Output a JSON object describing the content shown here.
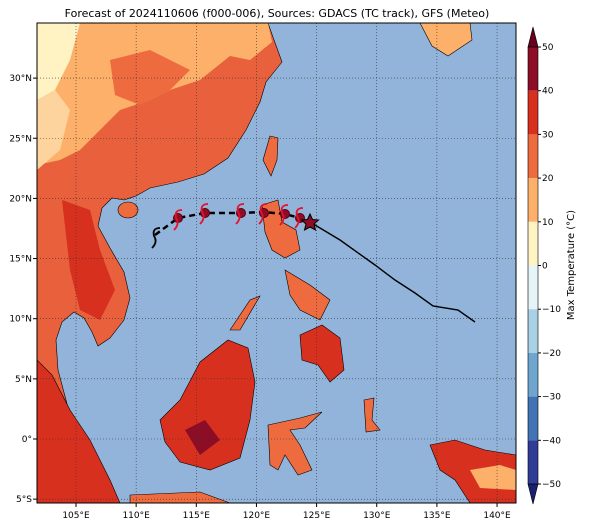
{
  "title": "Forecast of 2024110606 (f000-006), Sources: GDACS (TC track), GFS (Meteo)",
  "map": {
    "lon_ticks": [
      {
        "value": 105,
        "label": "105°E"
      },
      {
        "value": 110,
        "label": "110°E"
      },
      {
        "value": 115,
        "label": "115°E"
      },
      {
        "value": 120,
        "label": "120°E"
      },
      {
        "value": 125,
        "label": "125°E"
      },
      {
        "value": 130,
        "label": "130°E"
      },
      {
        "value": 135,
        "label": "135°E"
      },
      {
        "value": 140,
        "label": "140°E"
      }
    ],
    "lat_ticks": [
      {
        "value": 30,
        "label": "30°N"
      },
      {
        "value": 25,
        "label": "25°N"
      },
      {
        "value": 20,
        "label": "20°N"
      },
      {
        "value": 15,
        "label": "15°N"
      },
      {
        "value": 10,
        "label": "10°N"
      },
      {
        "value": 5,
        "label": "5°N"
      },
      {
        "value": 0,
        "label": "0°"
      },
      {
        "value": -5,
        "label": "5°S"
      }
    ]
  },
  "colorbar": {
    "label": "Max Temperature (°C)",
    "ticks": [
      {
        "value": 50,
        "label": "50"
      },
      {
        "value": 40,
        "label": "40"
      },
      {
        "value": 30,
        "label": "30"
      },
      {
        "value": 20,
        "label": "20"
      },
      {
        "value": 10,
        "label": "10"
      },
      {
        "value": 0,
        "label": "0"
      },
      {
        "value": -10,
        "label": "−10"
      },
      {
        "value": -20,
        "label": "−20"
      },
      {
        "value": -30,
        "label": "−30"
      },
      {
        "value": -40,
        "label": "−40"
      },
      {
        "value": -50,
        "label": "−50"
      }
    ],
    "colors": [
      "#8c0d25",
      "#d7301f",
      "#ee6a3f",
      "#fdb06a",
      "#fff3c4",
      "#e6f3f7",
      "#a9d0e4",
      "#6ea6cf",
      "#4273b4",
      "#2f3d96"
    ],
    "over_color": "#67001f",
    "under_color": "#1b1f70"
  }
}
